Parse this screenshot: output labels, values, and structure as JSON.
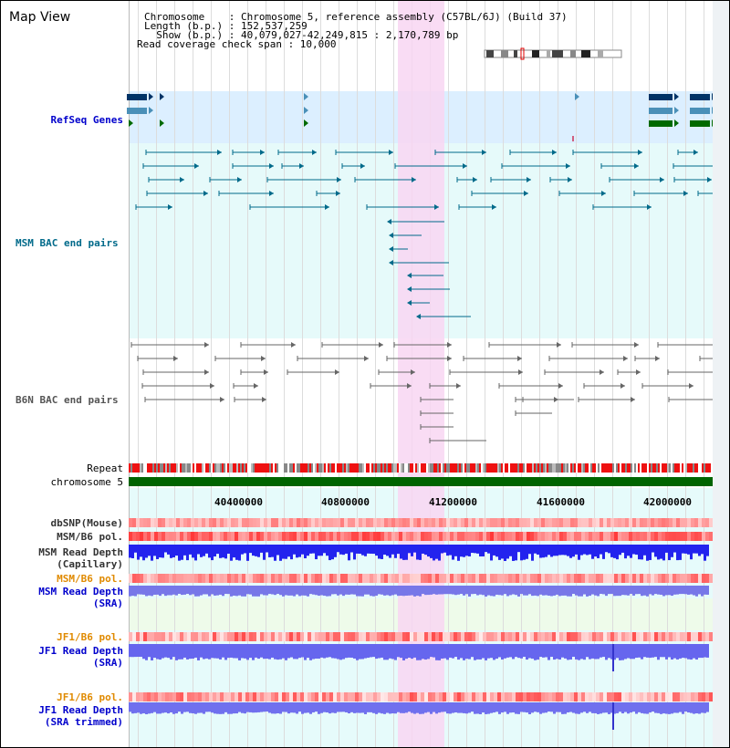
{
  "title": "Map View",
  "info": {
    "chromosome": "Chromosome    : Chromosome 5, reference assembly (C57BL/6J) (Build 37)",
    "length": "Length (b.p.) : 152,537,259",
    "show": "  Show (b.p.) : 40,079,027-42,249,815 : 2,170,789 bp",
    "coverage": "Read coverage check span : 10,000"
  },
  "tracks": {
    "refseq": "RefSeq Genes",
    "msm_bac": "MSM BAC end pairs",
    "b6n_bac": "B6N BAC end pairs",
    "repeat": "Repeat",
    "chromosome": "chromosome 5",
    "dbsnp": "dbSNP(Mouse)",
    "msm_b6_pol_1": "MSM/B6 pol.",
    "msm_depth_cap_1": "MSM Read Depth",
    "msm_depth_cap_2": "(Capillary)",
    "msm_b6_pol_2": "MSM/B6 pol.",
    "msm_depth_sra_1": "MSM Read Depth",
    "msm_depth_sra_2": "(SRA)",
    "jf1_b6_pol_1": "JF1/B6 pol.",
    "jf1_depth_sra_1": "JF1 Read Depth",
    "jf1_depth_sra_2": "(SRA)",
    "jf1_b6_pol_2": "JF1/B6 pol.",
    "jf1_depth_trim_1": "JF1 Read Depth",
    "jf1_depth_trim_2": "(SRA trimmed)"
  },
  "axis": {
    "ticks": [
      "40400000",
      "40800000",
      "41200000",
      "41600000",
      "42000000"
    ]
  },
  "colors": {
    "refseq_bg": "#dff0fa",
    "bac_bg": "#e8fbfb",
    "highlight": "#f8d8f0",
    "chromosome_bar": "#006400",
    "msm_track": "#006a8a",
    "b6n_track": "#666666",
    "depth_blue": "#2222ee",
    "depth_violet": "#7777ee"
  }
}
